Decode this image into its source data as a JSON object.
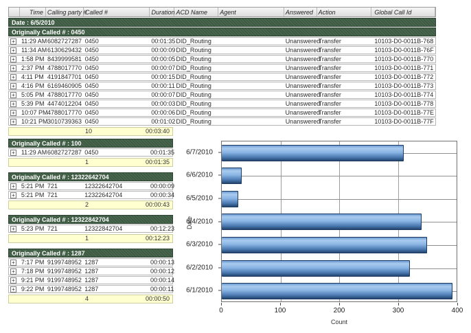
{
  "report": {
    "columns": [
      "",
      "Time",
      "Calling party #",
      "Called #",
      "Duration",
      "ACD Name",
      "Agent",
      "Answered",
      "Action",
      "Global Call Id"
    ],
    "date_banner": "Date : 6/5/2010",
    "expand_glyph": "+",
    "main_group": {
      "title": "Originally Called # : 0450",
      "rows": [
        {
          "time": "11:29 AM",
          "calling_party": "6082727287",
          "called": "0450",
          "duration": "00:01:35",
          "acd_name": "DID_Routing",
          "agent": "",
          "answered": "Unanswered",
          "action": "Transfer",
          "global_call_id": "10103-D0-0011B-768"
        },
        {
          "time": "11:34 AM",
          "calling_party": "6130629432",
          "called": "0450",
          "duration": "00:00:09",
          "acd_name": "DID_Routing",
          "agent": "",
          "answered": "Unanswered",
          "action": "Transfer",
          "global_call_id": "10103-D0-0011B-76F"
        },
        {
          "time": "1:58 PM",
          "calling_party": "8439999581",
          "called": "0450",
          "duration": "00:00:05",
          "acd_name": "DID_Routing",
          "agent": "",
          "answered": "Unanswered",
          "action": "Transfer",
          "global_call_id": "10103-D0-0011B-770"
        },
        {
          "time": "2:37 PM",
          "calling_party": "4788017770",
          "called": "0450",
          "duration": "00:00:07",
          "acd_name": "DID_Routing",
          "agent": "",
          "answered": "Unanswered",
          "action": "Transfer",
          "global_call_id": "10103-D0-0011B-771"
        },
        {
          "time": "4:11 PM",
          "calling_party": "4191847701",
          "called": "0450",
          "duration": "00:00:15",
          "acd_name": "DID_Routing",
          "agent": "",
          "answered": "Unanswered",
          "action": "Transfer",
          "global_call_id": "10103-D0-0011B-772"
        },
        {
          "time": "4:16 PM",
          "calling_party": "6169460905",
          "called": "0450",
          "duration": "00:00:11",
          "acd_name": "DID_Routing",
          "agent": "",
          "answered": "Unanswered",
          "action": "Transfer",
          "global_call_id": "10103-D0-0011B-773"
        },
        {
          "time": "5:05 PM",
          "calling_party": "4788017770",
          "called": "0450",
          "duration": "00:00:07",
          "acd_name": "DID_Routing",
          "agent": "",
          "answered": "Unanswered",
          "action": "Transfer",
          "global_call_id": "10103-D0-0011B-774"
        },
        {
          "time": "5:39 PM",
          "calling_party": "4474012204",
          "called": "0450",
          "duration": "00:00:03",
          "acd_name": "DID_Routing",
          "agent": "",
          "answered": "Unanswered",
          "action": "Transfer",
          "global_call_id": "10103-D0-0011B-778"
        },
        {
          "time": "10:07 PM",
          "calling_party": "4788017770",
          "called": "0450",
          "duration": "00:00:06",
          "acd_name": "DID_Routing",
          "agent": "",
          "answered": "Unanswered",
          "action": "Transfer",
          "global_call_id": "10103-D0-0011B-77E"
        },
        {
          "time": "10:21 PM",
          "calling_party": "3010739363",
          "called": "0450",
          "duration": "00:01:02",
          "acd_name": "DID_Routing",
          "agent": "",
          "answered": "Unanswered",
          "action": "Transfer",
          "global_call_id": "10103-D0-0011B-77F"
        }
      ],
      "summary": {
        "count": "10",
        "total": "00:03:40"
      }
    },
    "sub_groups": [
      {
        "title": "Originally Called # : 100",
        "rows": [
          {
            "time": "11:29 AM",
            "calling_party": "6082727287",
            "called": "0450",
            "duration": "00:01:35"
          }
        ],
        "summary": {
          "count": "1",
          "total": "00:01:35"
        }
      },
      {
        "title": "Originally Called # : 12322642704",
        "rows": [
          {
            "time": "5:21 PM",
            "calling_party": "721",
            "called": "12322642704",
            "duration": "00:00:09"
          },
          {
            "time": "5:21 PM",
            "calling_party": "721",
            "called": "12322642704",
            "duration": "00:00:34"
          }
        ],
        "summary": {
          "count": "2",
          "total": "00:00:43"
        }
      },
      {
        "title": "Originally Called # : 12322842704",
        "rows": [
          {
            "time": "5:23 PM",
            "calling_party": "721",
            "called": "12322842704",
            "duration": "00:12:23"
          }
        ],
        "summary": {
          "count": "1",
          "total": "00:12:23"
        }
      },
      {
        "title": "Originally Called # : 1287",
        "rows": [
          {
            "time": "7:17 PM",
            "calling_party": "9199748952",
            "called": "1287",
            "duration": "00:00:13"
          },
          {
            "time": "7:18 PM",
            "calling_party": "9199748952",
            "called": "1287",
            "duration": "00:00:12"
          },
          {
            "time": "9:21 PM",
            "calling_party": "9199748952",
            "called": "1287",
            "duration": "00:00:14"
          },
          {
            "time": "9:22 PM",
            "calling_party": "9199748952",
            "called": "1287",
            "duration": "00:00:11"
          }
        ],
        "summary": {
          "count": "4",
          "total": "00:00:50"
        }
      }
    ]
  },
  "chart_data": {
    "type": "bar",
    "orientation": "horizontal",
    "title": "",
    "categories": [
      "6/7/2010",
      "6/6/2010",
      "6/5/2010",
      "6/4/2010",
      "6/3/2010",
      "6/2/2010",
      "6/1/2010"
    ],
    "values": [
      310,
      34,
      28,
      340,
      350,
      320,
      393
    ],
    "xlabel": "Count",
    "ylabel": "Date",
    "xlim": [
      0,
      400
    ],
    "xticks": [
      0,
      100,
      200,
      300,
      400
    ],
    "grid": true,
    "legend": false
  },
  "colors": {
    "group_banner_green": "#3e5a43",
    "summary_yellow": "#ffffd0",
    "bar_blue_light": "#a9cbee",
    "bar_blue_dark": "#23456f",
    "row_border": "#b5b5b5"
  }
}
